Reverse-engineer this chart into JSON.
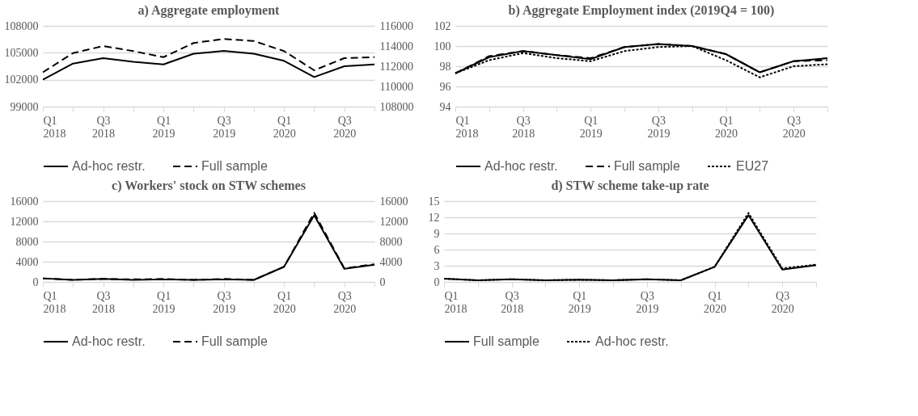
{
  "chart_data": [
    {
      "type": "line",
      "title": "a) Aggregate employment",
      "categories": [
        "Q1 2018",
        null,
        "Q3 2018",
        null,
        "Q1 2019",
        null,
        "Q3 2019",
        null,
        "Q1 2020",
        null,
        "Q3 2020",
        null
      ],
      "series": [
        {
          "name": "Ad-hoc restr.",
          "color": "#000000",
          "line_style": "solid",
          "values": [
            102000,
            103800,
            104400,
            104000,
            103700,
            104900,
            105200,
            104900,
            104100,
            102300,
            103500,
            103700
          ]
        },
        {
          "name": "Full sample",
          "color": "#000000",
          "line_style": "dashed",
          "axis": "y2",
          "values": [
            111400,
            113300,
            114000,
            113500,
            112900,
            114300,
            114700,
            114500,
            113500,
            111600,
            112800,
            112900
          ]
        }
      ],
      "ylim": [
        99000,
        108000
      ],
      "yticks": [
        99000,
        102000,
        105000,
        108000
      ],
      "y2lim": [
        108000,
        116000
      ],
      "y2ticks": [
        108000,
        110000,
        112000,
        114000,
        116000
      ],
      "grid": "y",
      "legend": "bottom"
    },
    {
      "type": "line",
      "title": "b) Aggregate Employment index (2019Q4 = 100)",
      "categories": [
        "Q1 2018",
        null,
        "Q3 2018",
        null,
        "Q1 2019",
        null,
        "Q3 2019",
        null,
        "Q1 2020",
        null,
        "Q3 2020",
        null
      ],
      "series": [
        {
          "name": "Ad-hoc restr.",
          "color": "#000000",
          "line_style": "solid",
          "values": [
            97.3,
            98.9,
            99.5,
            99.1,
            98.7,
            99.9,
            100.2,
            100.0,
            99.2,
            97.4,
            98.5,
            98.8
          ]
        },
        {
          "name": "Full sample",
          "color": "#000000",
          "line_style": "dashed",
          "values": [
            97.3,
            99.0,
            99.5,
            99.1,
            98.8,
            99.9,
            100.2,
            100.0,
            99.2,
            97.4,
            98.5,
            98.6
          ]
        },
        {
          "name": "EU27",
          "color": "#000000",
          "line_style": "dotted",
          "values": [
            97.3,
            98.6,
            99.3,
            98.8,
            98.5,
            99.5,
            99.9,
            100.0,
            98.6,
            96.9,
            98.0,
            98.2
          ]
        }
      ],
      "ylim": [
        94,
        102
      ],
      "yticks": [
        94,
        96,
        98,
        100,
        102
      ],
      "grid": "y",
      "legend": "bottom"
    },
    {
      "type": "line",
      "title": "c) Workers' stock on STW schemes",
      "categories": [
        "Q1 2018",
        null,
        "Q3 2018",
        null,
        "Q1 2019",
        null,
        "Q3 2019",
        null,
        "Q1 2020",
        null,
        "Q3 2020",
        null
      ],
      "series": [
        {
          "name": "Ad-hoc restr.",
          "color": "#000000",
          "line_style": "solid",
          "values": [
            700,
            400,
            600,
            400,
            500,
            400,
            500,
            400,
            3000,
            13200,
            2600,
            3400
          ]
        },
        {
          "name": "Full sample",
          "color": "#000000",
          "line_style": "dashed",
          "axis": "y2",
          "values": [
            700,
            400,
            600,
            500,
            600,
            400,
            600,
            400,
            3000,
            13700,
            2700,
            3500
          ]
        }
      ],
      "ylim": [
        0,
        16000
      ],
      "yticks": [
        0,
        4000,
        8000,
        12000,
        16000
      ],
      "y2lim": [
        0,
        16000
      ],
      "y2ticks": [
        0,
        4000,
        8000,
        12000,
        16000
      ],
      "grid": "y",
      "legend": "bottom"
    },
    {
      "type": "line",
      "title": "d) STW scheme take-up rate",
      "categories": [
        "Q1 2018",
        null,
        "Q3 2018",
        null,
        "Q1 2019",
        null,
        "Q3 2019",
        null,
        "Q1 2020",
        null,
        "Q3 2020",
        null
      ],
      "series": [
        {
          "name": "Full sample",
          "color": "#000000",
          "line_style": "solid",
          "values": [
            0.6,
            0.3,
            0.5,
            0.3,
            0.4,
            0.3,
            0.5,
            0.3,
            2.8,
            12.4,
            2.3,
            3.1
          ]
        },
        {
          "name": "Ad-hoc restr.",
          "color": "#000000",
          "line_style": "dotted",
          "values": [
            0.6,
            0.3,
            0.5,
            0.3,
            0.4,
            0.3,
            0.5,
            0.3,
            2.8,
            12.8,
            2.5,
            3.2
          ]
        }
      ],
      "ylim": [
        0,
        15
      ],
      "yticks": [
        0,
        3,
        6,
        9,
        12,
        15
      ],
      "grid": "y",
      "legend": "bottom"
    }
  ]
}
